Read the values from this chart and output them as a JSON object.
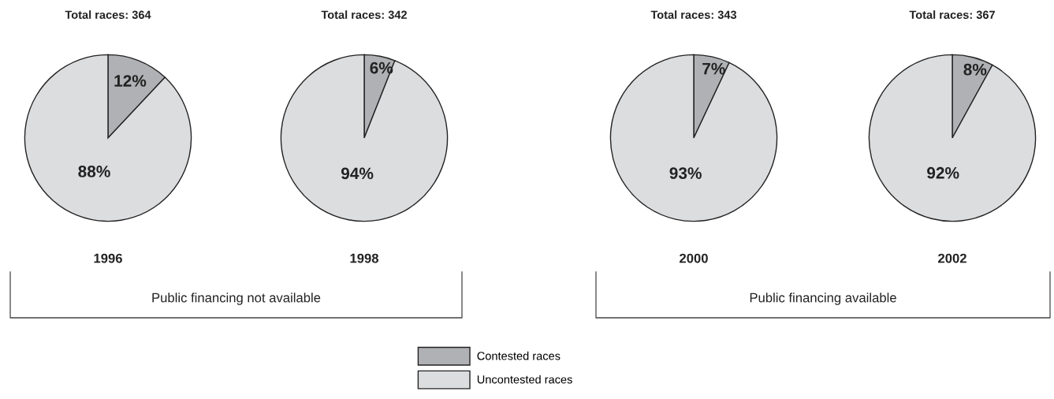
{
  "chart_data": [
    {
      "type": "pie",
      "title": "Total races: 364",
      "xlabel": "1996",
      "categories": [
        "Contested races",
        "Uncontested races"
      ],
      "values": [
        12,
        88
      ],
      "value_labels": [
        "12%",
        "88%"
      ],
      "colors": [
        "#b0b1b4",
        "#dcdddf"
      ],
      "legend": "bottom",
      "annotations": [
        "Public financing not available"
      ]
    },
    {
      "type": "pie",
      "title": "Total races: 342",
      "xlabel": "1998",
      "categories": [
        null,
        null
      ],
      "values": [
        6,
        94
      ],
      "value_labels": [
        "6%",
        "94%"
      ],
      "colors": [
        "#b0b1b4",
        "#dcdddf"
      ]
    },
    {
      "type": "pie",
      "title": "Total races: 343",
      "xlabel": "2000",
      "categories": [
        null,
        null
      ],
      "values": [
        7,
        93
      ],
      "value_labels": [
        "7%",
        "93%"
      ],
      "colors": [
        "#b0b1b4",
        "#dcdddf"
      ],
      "annotations": [
        "Public financing available"
      ]
    },
    {
      "type": "pie",
      "title": "Total races: 367",
      "xlabel": "2002",
      "categories": [
        null,
        null
      ],
      "values": [
        8,
        92
      ],
      "value_labels": [
        "8%",
        "92%"
      ],
      "colors": [
        "#b0b1b4",
        "#dcdddf"
      ]
    }
  ]
}
